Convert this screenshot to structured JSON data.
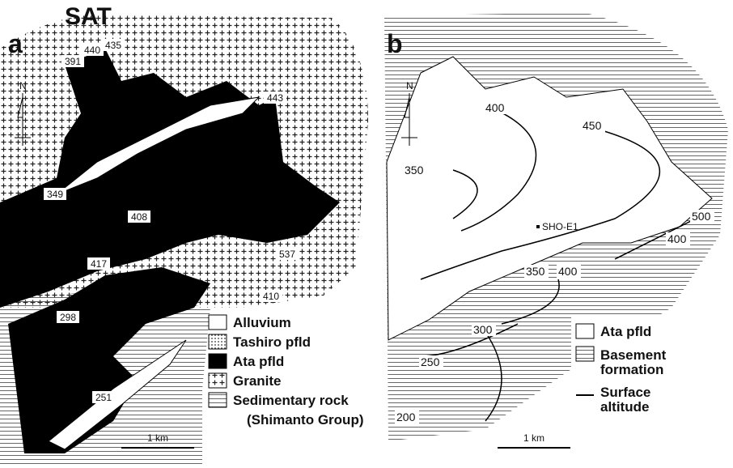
{
  "title": "SAT",
  "panels": [
    {
      "label": "a",
      "north": "N",
      "spot_heights": [
        "440",
        "435",
        "391",
        "443",
        "349",
        "408",
        "537",
        "417",
        "410",
        "298",
        "251"
      ],
      "legend": [
        "Alluvium",
        "Tashiro pfld",
        "Ata pfld",
        "Granite",
        "Sedimentary rock",
        "(Shimanto Group)"
      ],
      "scale": "1 km"
    },
    {
      "label": "b",
      "north": "N",
      "contours": [
        "400",
        "350",
        "450",
        "500",
        "400",
        "350",
        "400",
        "300",
        "250",
        "200"
      ],
      "station": "SHO-E1",
      "legend": [
        "Ata pfld",
        "Basement formation",
        "Surface altitude"
      ],
      "scale": "1 km"
    }
  ]
}
